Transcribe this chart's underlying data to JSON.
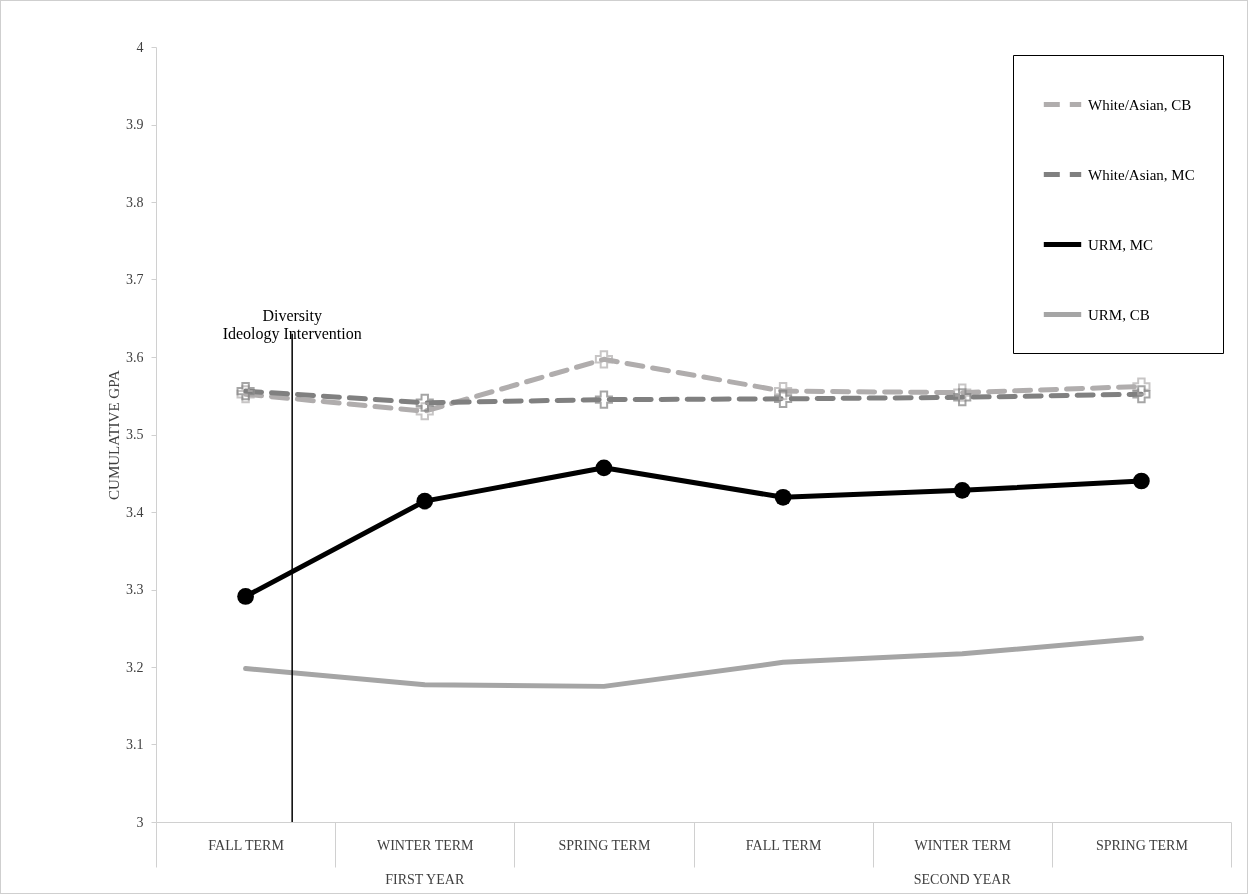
{
  "chart_data": {
    "type": "line",
    "ylabel": "CUMULATIVE GPA",
    "categories": [
      "FALL TERM",
      "WINTER TERM",
      "SPRING TERM",
      "FALL TERM",
      "WINTER TERM",
      "SPRING TERM"
    ],
    "series": [
      {
        "name": "White/Asian, CB",
        "color": "#b0adad",
        "line_style": "dashed",
        "marker": "cross",
        "values": [
          3.552,
          3.53,
          3.597,
          3.556,
          3.554,
          3.562
        ]
      },
      {
        "name": "White/Asian, MC",
        "color": "#808080",
        "line_style": "dashed",
        "marker": "cross",
        "values": [
          3.556,
          3.541,
          3.545,
          3.546,
          3.548,
          3.552
        ]
      },
      {
        "name": "URM, MC",
        "color": "#000000",
        "line_style": "solid",
        "marker": "circle",
        "values": [
          3.291,
          3.414,
          3.457,
          3.419,
          3.428,
          3.44
        ]
      },
      {
        "name": "URM, CB",
        "color": "#a5a5a5",
        "line_style": "solid",
        "marker": "none",
        "values": [
          3.198,
          3.177,
          3.175,
          3.206,
          3.217,
          3.237
        ]
      }
    ],
    "ylim": [
      3,
      4
    ],
    "yticks": [
      3,
      3.1,
      3.2,
      3.3,
      3.4,
      3.5,
      3.6,
      3.7,
      3.8,
      3.9,
      4
    ],
    "legend": "top right",
    "ref_lines": [
      {
        "axis": "x",
        "value": "FALL TERM",
        "label": "Diversity\nIdeology Intervention",
        "color": "#000000"
      }
    ],
    "annotations": [
      "FIRST YEAR",
      "SECOND YEAR"
    ]
  }
}
